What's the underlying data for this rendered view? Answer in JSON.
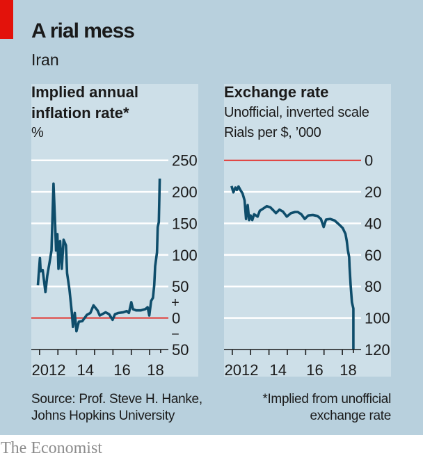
{
  "header": {
    "title": "A rial mess",
    "subtitle": "Iran"
  },
  "colors": {
    "accent_red": "#e3120b",
    "background": "#b8d0dd",
    "panel": "#cddfe8",
    "line": "#0e4d6b",
    "zero_line": "#e3342f",
    "gridline": "#ffffff",
    "text": "#1a1a1a",
    "brand": "#8c8c8c"
  },
  "chart_data": [
    {
      "type": "line",
      "title": "Implied annual inflation rate*",
      "title_lines": [
        "Implied annual",
        "inflation rate*"
      ],
      "subtitle_lines": [
        "%"
      ],
      "xlabel": "",
      "ylabel": "%",
      "xlim": [
        2011.55,
        2019.02
      ],
      "ylim": [
        -50,
        250
      ],
      "y_inverted": false,
      "grid": true,
      "legend": "none",
      "y_ticks": [
        250,
        200,
        150,
        100,
        50,
        0,
        -50
      ],
      "y_tick_labels": [
        "250",
        "200",
        "150",
        "100",
        "50",
        "0",
        "50"
      ],
      "zero_line": 0,
      "axis_value": -50,
      "sign_labels": [
        {
          "value": 25,
          "label": "+"
        },
        {
          "value": -25,
          "label": "−"
        }
      ],
      "x_ticks": [
        2012,
        2013,
        2014,
        2015,
        2016,
        2017,
        2018
      ],
      "x_end_tick": 2018.6,
      "x_tick_labels": [
        {
          "x": 2012.5,
          "label": "2012"
        },
        {
          "x": 2014.5,
          "label": "14"
        },
        {
          "x": 2016.5,
          "label": "16"
        },
        {
          "x": 2018.32,
          "label": "18"
        }
      ],
      "series": [
        {
          "name": "Implied annual inflation rate",
          "points": [
            [
              2011.91,
              52
            ],
            [
              2012.02,
              95
            ],
            [
              2012.06,
              74
            ],
            [
              2012.17,
              76
            ],
            [
              2012.32,
              41
            ],
            [
              2012.42,
              67
            ],
            [
              2012.55,
              89
            ],
            [
              2012.65,
              107
            ],
            [
              2012.7,
              155
            ],
            [
              2012.76,
              213
            ],
            [
              2012.84,
              155
            ],
            [
              2012.9,
              107
            ],
            [
              2012.97,
              133
            ],
            [
              2013.03,
              78
            ],
            [
              2013.12,
              122
            ],
            [
              2013.21,
              78
            ],
            [
              2013.31,
              124
            ],
            [
              2013.44,
              115
            ],
            [
              2013.5,
              71
            ],
            [
              2013.63,
              45
            ],
            [
              2013.76,
              8
            ],
            [
              2013.82,
              -14
            ],
            [
              2013.92,
              8
            ],
            [
              2014.01,
              -21
            ],
            [
              2014.14,
              -6
            ],
            [
              2014.33,
              -5
            ],
            [
              2014.58,
              5
            ],
            [
              2014.77,
              8
            ],
            [
              2014.94,
              20
            ],
            [
              2015.16,
              12
            ],
            [
              2015.28,
              4
            ],
            [
              2015.41,
              6
            ],
            [
              2015.6,
              9
            ],
            [
              2015.79,
              6
            ],
            [
              2015.98,
              -3
            ],
            [
              2016.11,
              6
            ],
            [
              2016.3,
              8
            ],
            [
              2016.56,
              9
            ],
            [
              2016.75,
              11
            ],
            [
              2016.87,
              8
            ],
            [
              2017.0,
              25
            ],
            [
              2017.09,
              14
            ],
            [
              2017.26,
              12
            ],
            [
              2017.51,
              12
            ],
            [
              2017.76,
              14
            ],
            [
              2017.89,
              17
            ],
            [
              2017.98,
              4
            ],
            [
              2018.08,
              27
            ],
            [
              2018.18,
              32
            ],
            [
              2018.25,
              52
            ],
            [
              2018.3,
              82
            ],
            [
              2018.4,
              104
            ],
            [
              2018.44,
              144
            ],
            [
              2018.5,
              152
            ],
            [
              2018.55,
              221
            ]
          ]
        }
      ]
    },
    {
      "type": "line",
      "title": "Exchange rate",
      "title_lines": [
        "Exchange rate"
      ],
      "subtitle_lines": [
        "Unofficial, inverted scale",
        "Rials per $, ’000"
      ],
      "xlabel": "",
      "ylabel": "Rials per $, ’000",
      "xlim": [
        2011.55,
        2019.02
      ],
      "ylim": [
        0,
        120
      ],
      "y_inverted": true,
      "grid": true,
      "legend": "none",
      "y_ticks": [
        0,
        20,
        40,
        60,
        80,
        100,
        120
      ],
      "y_tick_labels": [
        "0",
        "20",
        "40",
        "60",
        "80",
        "100",
        "120"
      ],
      "zero_line": 0,
      "axis_value": 120,
      "sign_labels": [],
      "x_ticks": [
        2012,
        2013,
        2014,
        2015,
        2016,
        2017,
        2018
      ],
      "x_end_tick": 2018.6,
      "x_tick_labels": [
        {
          "x": 2012.5,
          "label": "2012"
        },
        {
          "x": 2014.5,
          "label": "14"
        },
        {
          "x": 2016.5,
          "label": "16"
        },
        {
          "x": 2018.32,
          "label": "18"
        }
      ],
      "series": [
        {
          "name": "Unofficial exchange rate, rials per $ ('000)",
          "points": [
            [
              2011.96,
              16.3
            ],
            [
              2012.06,
              20.3
            ],
            [
              2012.17,
              17.3
            ],
            [
              2012.25,
              18.8
            ],
            [
              2012.34,
              16.6
            ],
            [
              2012.44,
              18.8
            ],
            [
              2012.56,
              21.0
            ],
            [
              2012.67,
              25.4
            ],
            [
              2012.75,
              37.2
            ],
            [
              2012.84,
              28.4
            ],
            [
              2012.92,
              37.9
            ],
            [
              2013.0,
              35.0
            ],
            [
              2013.09,
              37.9
            ],
            [
              2013.19,
              34.2
            ],
            [
              2013.38,
              35.7
            ],
            [
              2013.5,
              32.0
            ],
            [
              2013.69,
              30.6
            ],
            [
              2013.88,
              29.1
            ],
            [
              2014.07,
              29.8
            ],
            [
              2014.26,
              32.0
            ],
            [
              2014.38,
              33.5
            ],
            [
              2014.57,
              31.3
            ],
            [
              2014.76,
              32.5
            ],
            [
              2014.97,
              35.7
            ],
            [
              2015.2,
              33.5
            ],
            [
              2015.42,
              32.8
            ],
            [
              2015.57,
              32.8
            ],
            [
              2015.76,
              34.2
            ],
            [
              2015.95,
              37.2
            ],
            [
              2016.14,
              35.0
            ],
            [
              2016.39,
              34.7
            ],
            [
              2016.64,
              35.3
            ],
            [
              2016.83,
              37.2
            ],
            [
              2016.98,
              42.3
            ],
            [
              2017.11,
              37.6
            ],
            [
              2017.33,
              37.2
            ],
            [
              2017.58,
              38.2
            ],
            [
              2017.83,
              40.8
            ],
            [
              2018.02,
              43.0
            ],
            [
              2018.17,
              46.7
            ],
            [
              2018.24,
              51.2
            ],
            [
              2018.3,
              57.0
            ],
            [
              2018.37,
              61.4
            ],
            [
              2018.39,
              67.3
            ],
            [
              2018.45,
              79.0
            ],
            [
              2018.52,
              90.0
            ],
            [
              2018.6,
              94.0
            ],
            [
              2018.6,
              120.0
            ]
          ]
        }
      ]
    }
  ],
  "footer": {
    "source_lines": [
      "Source: Prof. Steve H. Hanke,",
      "Johns Hopkins University"
    ],
    "note_lines": [
      "*Implied from unofficial",
      "exchange rate"
    ],
    "brand": "The Economist"
  }
}
